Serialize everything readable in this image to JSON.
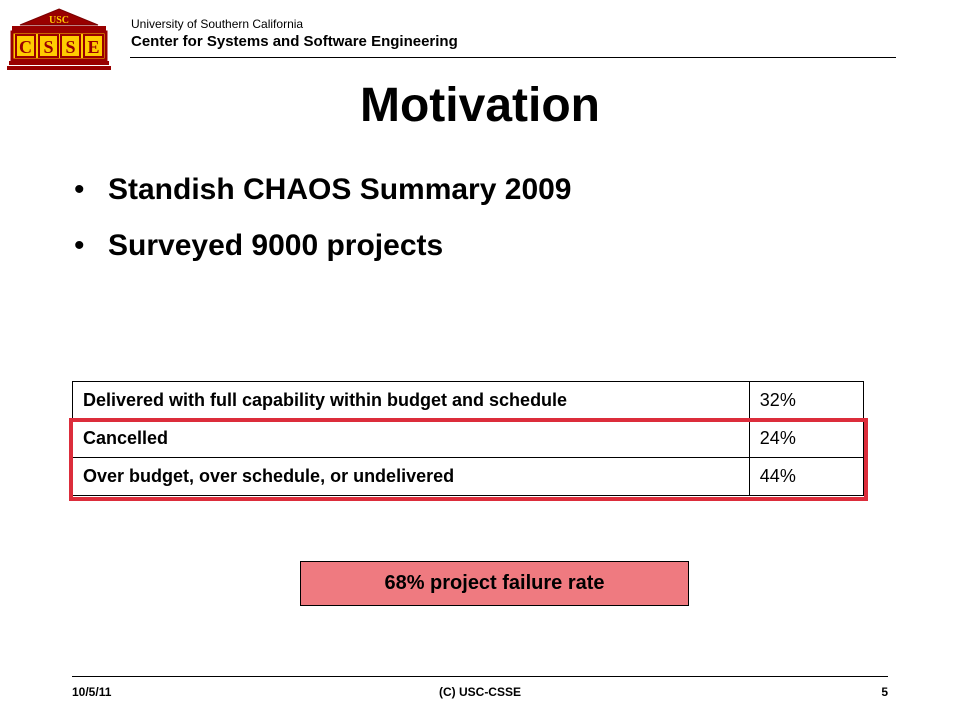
{
  "header": {
    "logo": {
      "icon": "usc-csse-logo",
      "top_text": "USC",
      "letters": [
        "C",
        "S",
        "S",
        "E"
      ],
      "colors": {
        "maroon": "#990000",
        "gold": "#ffcc00"
      }
    },
    "org_small": "University of Southern California",
    "org_big": "Center for Systems and Software Engineering"
  },
  "slide": {
    "title": "Motivation",
    "bullets": [
      {
        "text": "Standish CHAOS Summary 2009"
      },
      {
        "text": "Surveyed 9000 projects"
      }
    ]
  },
  "table": {
    "rows": [
      {
        "label": "Delivered with full capability within budget and schedule",
        "value": "32%"
      },
      {
        "label": "Cancelled",
        "value": "24%"
      },
      {
        "label": "Over budget, over schedule, or undelivered",
        "value": "44%"
      }
    ],
    "highlight_color": "#dc2d3b"
  },
  "callout": {
    "text": "68% project failure rate",
    "fill_color": "#ef7a80"
  },
  "footer": {
    "date": "10/5/11",
    "center": "(C) USC-CSSE",
    "page": "5"
  }
}
